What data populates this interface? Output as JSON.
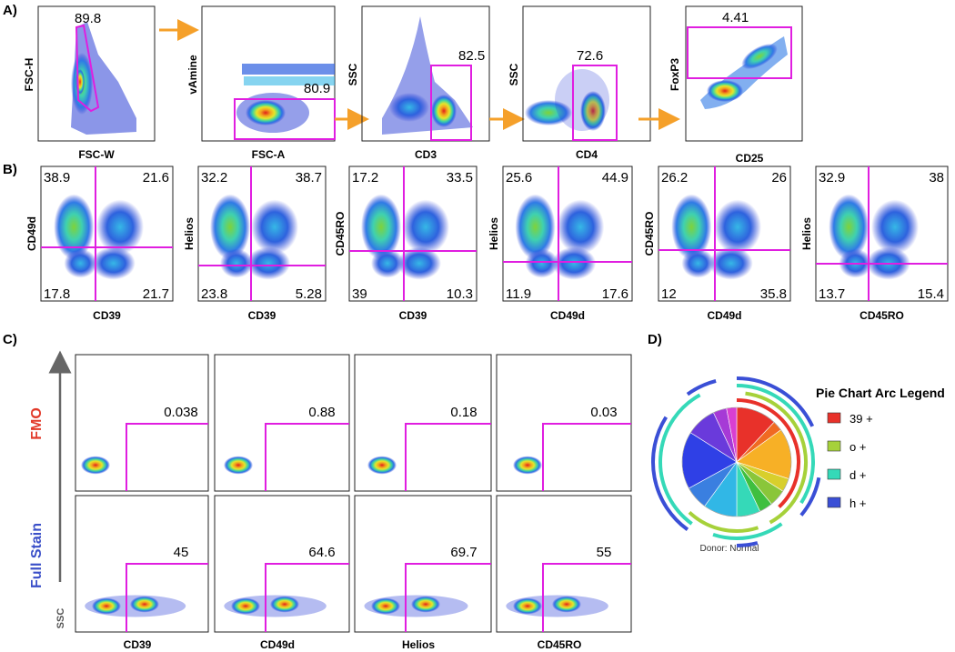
{
  "section_labels": {
    "a": "A)",
    "b": "B)",
    "c": "C)",
    "d": "D)"
  },
  "colors": {
    "gate": "#e01ee0",
    "arrow": "#f5a02a",
    "fmo": "#e23a2a",
    "full_stain": "#3a4fc8",
    "axis": "#444444"
  },
  "row_a": [
    {
      "xlabel": "FSC-W",
      "ylabel": "FSC-H",
      "gate_value": "89.8",
      "gate_shape": "polygon"
    },
    {
      "xlabel": "FSC-A",
      "ylabel": "vAmine",
      "gate_value": "80.9",
      "gate_shape": "rect"
    },
    {
      "xlabel": "CD3",
      "ylabel": "SSC",
      "gate_value": "82.5",
      "gate_shape": "rect"
    },
    {
      "xlabel": "CD4",
      "ylabel": "SSC",
      "gate_value": "72.6",
      "gate_shape": "rect"
    },
    {
      "xlabel": "CD25",
      "ylabel": "FoxP3",
      "gate_value": "4.41",
      "gate_shape": "rect"
    }
  ],
  "row_b": [
    {
      "xlabel": "CD39",
      "ylabel": "CD49d",
      "quadrants": {
        "ul": "38.9",
        "ur": "21.6",
        "ll": "17.8",
        "lr": "21.7"
      }
    },
    {
      "xlabel": "CD39",
      "ylabel": "Helios",
      "quadrants": {
        "ul": "32.2",
        "ur": "38.7",
        "ll": "23.8",
        "lr": "5.28"
      }
    },
    {
      "xlabel": "CD39",
      "ylabel": "CD45RO",
      "quadrants": {
        "ul": "17.2",
        "ur": "33.5",
        "ll": "39",
        "lr": "10.3"
      }
    },
    {
      "xlabel": "CD49d",
      "ylabel": "Helios",
      "quadrants": {
        "ul": "25.6",
        "ur": "44.9",
        "ll": "11.9",
        "lr": "17.6"
      }
    },
    {
      "xlabel": "CD49d",
      "ylabel": "CD45RO",
      "quadrants": {
        "ul": "26.2",
        "ur": "26",
        "ll": "12",
        "lr": "35.8"
      }
    },
    {
      "xlabel": "CD45RO",
      "ylabel": "Helios",
      "quadrants": {
        "ul": "32.9",
        "ur": "38",
        "ll": "13.7",
        "lr": "15.4"
      }
    }
  ],
  "row_c": {
    "row_labels": [
      "FMO",
      "Full Stain"
    ],
    "y_axis_label": "SSC",
    "columns": [
      {
        "xlabel": "CD39",
        "fmo": "0.038",
        "full": "45"
      },
      {
        "xlabel": "CD49d",
        "fmo": "0.88",
        "full": "64.6"
      },
      {
        "xlabel": "Helios",
        "fmo": "0.18",
        "full": "69.7"
      },
      {
        "xlabel": "CD45RO",
        "fmo": "0.03",
        "full": "55"
      }
    ]
  },
  "pie": {
    "legend_title": "Pie Chart Arc Legend",
    "legend": [
      {
        "label": "39 +",
        "color": "#e8312a"
      },
      {
        "label": "o +",
        "color": "#a6d13a"
      },
      {
        "label": "d +",
        "color": "#35d9b8"
      },
      {
        "label": "h +",
        "color": "#3a4fd6"
      }
    ],
    "caption": "Donor: Normal",
    "slices": [
      {
        "color": "#e8312a",
        "fraction": 0.12
      },
      {
        "color": "#f06a22",
        "fraction": 0.03
      },
      {
        "color": "#f7b026",
        "fraction": 0.15
      },
      {
        "color": "#d8cf2c",
        "fraction": 0.04
      },
      {
        "color": "#8ac63a",
        "fraction": 0.05
      },
      {
        "color": "#3fbf3f",
        "fraction": 0.04
      },
      {
        "color": "#35d9b8",
        "fraction": 0.07
      },
      {
        "color": "#31b7e6",
        "fraction": 0.1
      },
      {
        "color": "#3a7fe0",
        "fraction": 0.07
      },
      {
        "color": "#2f40e6",
        "fraction": 0.17
      },
      {
        "color": "#6a3adb",
        "fraction": 0.09
      },
      {
        "color": "#a63ad6",
        "fraction": 0.04
      },
      {
        "color": "#d93fd1",
        "fraction": 0.03
      }
    ],
    "arcs": [
      {
        "ring": 1,
        "color": "#e8312a",
        "start": 0.0,
        "end": 0.38
      },
      {
        "ring": 2,
        "color": "#a6d13a",
        "start": 0.02,
        "end": 0.42
      },
      {
        "ring": 2,
        "color": "#a6d13a",
        "start": 0.45,
        "end": 0.62
      },
      {
        "ring": 3,
        "color": "#35d9b8",
        "start": 0.0,
        "end": 0.34
      },
      {
        "ring": 3,
        "color": "#35d9b8",
        "start": 0.4,
        "end": 0.55
      },
      {
        "ring": 3,
        "color": "#35d9b8",
        "start": 0.6,
        "end": 0.92
      },
      {
        "ring": 4,
        "color": "#3a4fd6",
        "start": 0.0,
        "end": 0.18
      },
      {
        "ring": 4,
        "color": "#3a4fd6",
        "start": 0.28,
        "end": 0.36
      },
      {
        "ring": 4,
        "color": "#3a4fd6",
        "start": 0.46,
        "end": 0.5
      },
      {
        "ring": 4,
        "color": "#3a4fd6",
        "start": 0.6,
        "end": 0.84
      },
      {
        "ring": 4,
        "color": "#3a4fd6",
        "start": 0.9,
        "end": 0.96
      }
    ]
  }
}
